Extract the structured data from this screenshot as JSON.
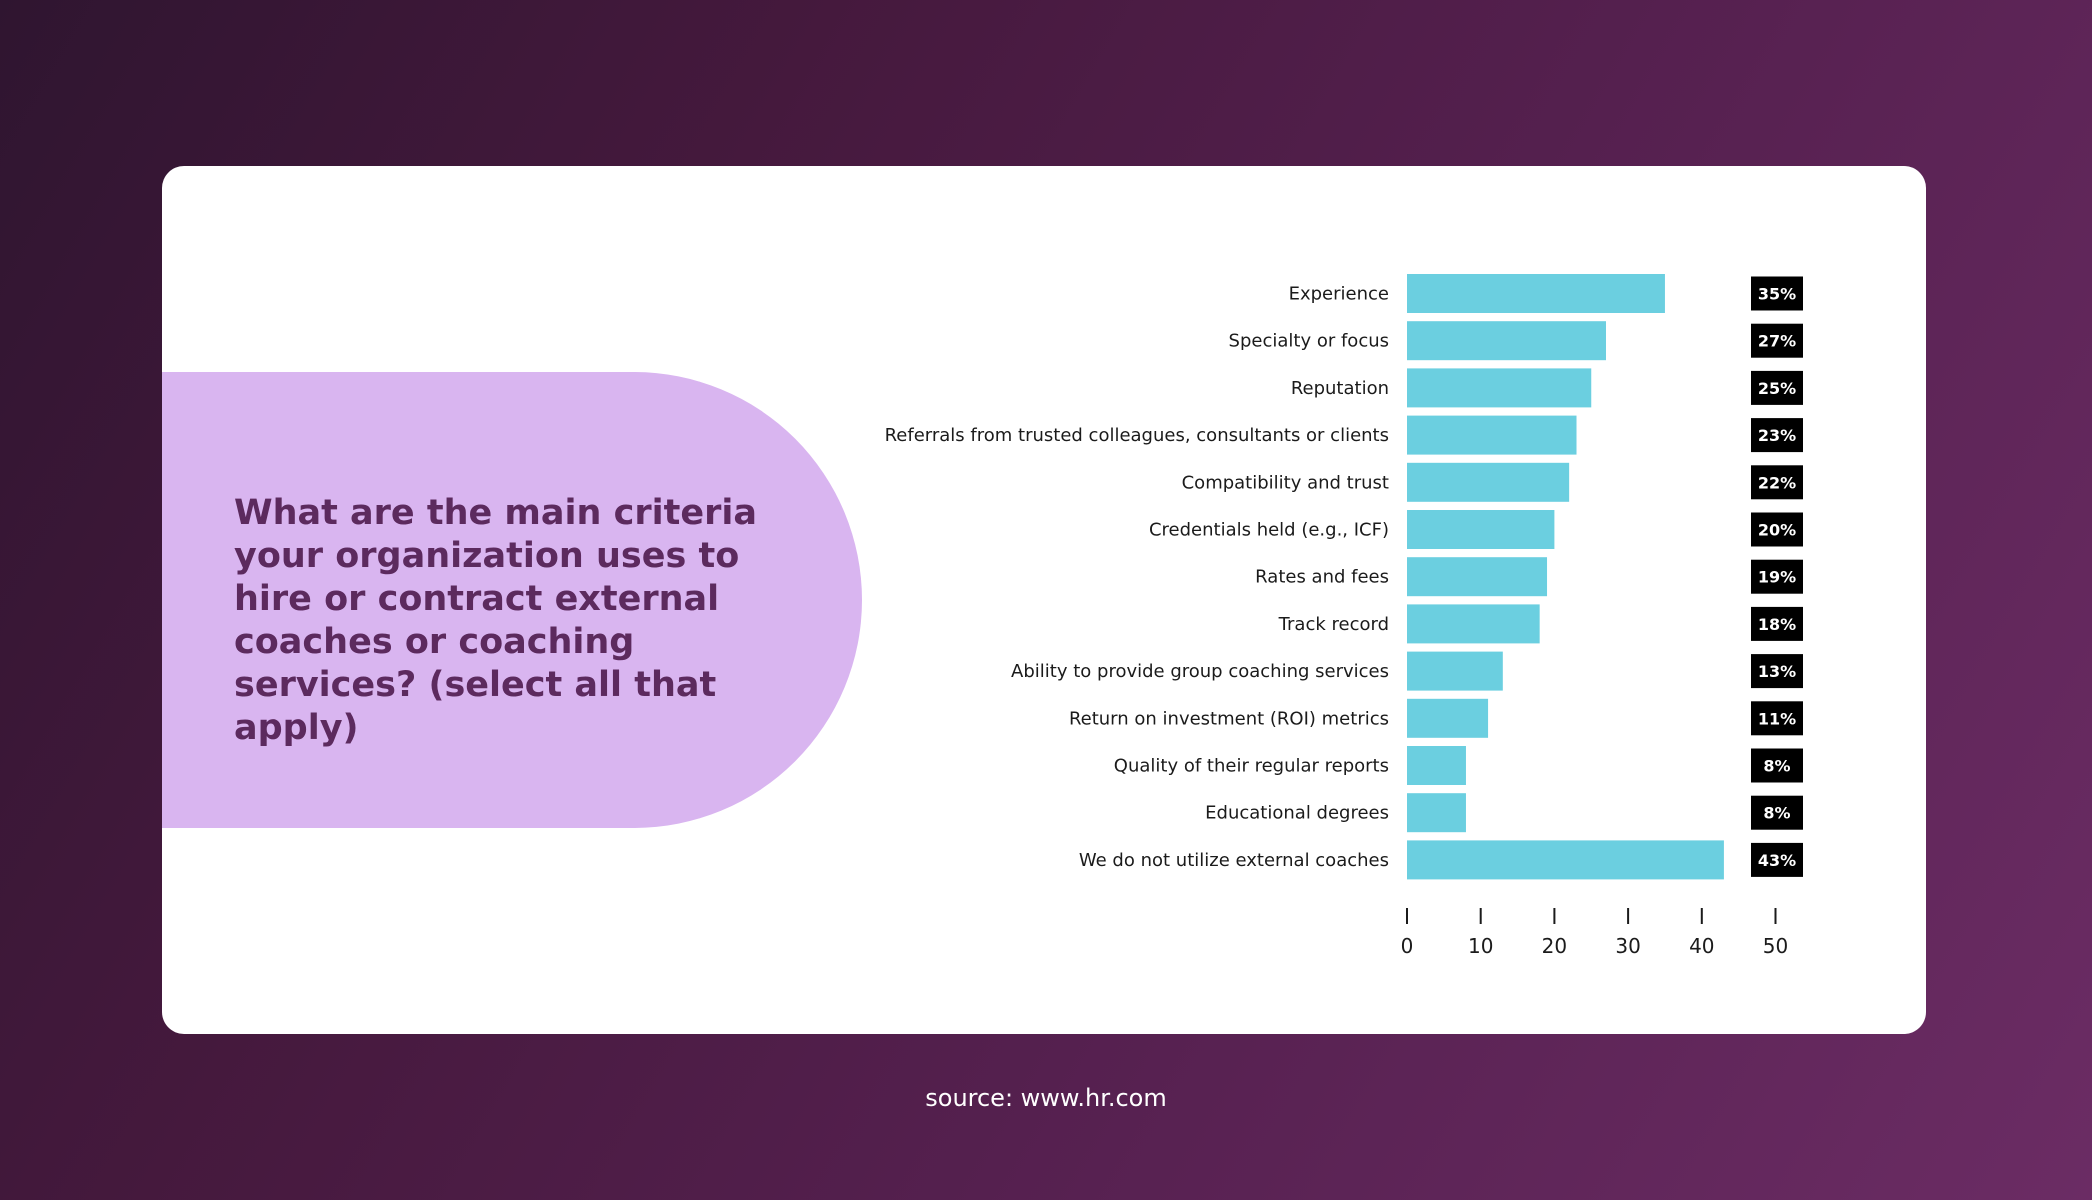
{
  "question": "What are the main criteria your organization uses to hire or contract external coaches or coaching services? (select all that apply)",
  "source": "source: www.hr.com",
  "colors": {
    "bar": "#6bcfe0",
    "badge": "#000000",
    "pill": "#d9b5f0",
    "question_text": "#5c2a5e"
  },
  "chart_data": {
    "type": "bar",
    "orientation": "horizontal",
    "categories": [
      "Experience",
      "Specialty or focus",
      "Reputation",
      "Referrals from trusted colleagues, consultants or clients",
      "Compatibility and trust",
      "Credentials held (e.g., ICF)",
      "Rates and fees",
      "Track record",
      "Ability to provide group coaching services",
      "Return on investment (ROI) metrics",
      "Quality of their regular reports",
      "Educational degrees",
      "We do not utilize external coaches"
    ],
    "values": [
      35,
      27,
      25,
      23,
      22,
      20,
      19,
      18,
      13,
      11,
      8,
      8,
      43
    ],
    "value_labels": [
      "35%",
      "27%",
      "25%",
      "23%",
      "22%",
      "20%",
      "19%",
      "18%",
      "13%",
      "11%",
      "8%",
      "8%",
      "43%"
    ],
    "xlim": [
      0,
      50
    ],
    "xticks": [
      "0",
      "10",
      "20",
      "30",
      "40",
      "50"
    ],
    "title": "",
    "xlabel": "",
    "ylabel": "",
    "grid": false,
    "legend": false
  }
}
